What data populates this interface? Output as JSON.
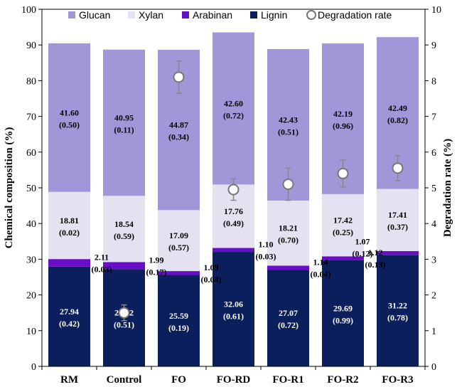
{
  "chart_data": {
    "type": "bar",
    "stacked": true,
    "categories": [
      "RM",
      "Control",
      "FO",
      "FO-RD",
      "FO-R1",
      "FO-R2",
      "FO-R3"
    ],
    "series": [
      {
        "name": "Lignin",
        "color": "#0b1f5c",
        "label_color": "#ffffff",
        "values": [
          27.94,
          27.22,
          25.59,
          32.06,
          27.07,
          29.69,
          31.22
        ],
        "errors": [
          0.42,
          0.51,
          0.19,
          0.61,
          0.72,
          0.99,
          0.78
        ],
        "value_labels": [
          "27.94",
          "27.22",
          "25.59",
          "32.06",
          "27.07",
          "29.69",
          "31.22"
        ],
        "error_labels": [
          "(0.42)",
          "(0.51)",
          "(0.19)",
          "(0.61)",
          "(0.72)",
          "(0.99)",
          "(0.78)"
        ]
      },
      {
        "name": "Arabinan",
        "color": "#6a0dc8",
        "label_color": "#000000",
        "values": [
          2.11,
          1.99,
          1.09,
          1.1,
          1.14,
          1.12,
          1.07
        ],
        "errors": [
          0.03,
          0.17,
          0.04,
          0.03,
          0.04,
          0.13,
          0.12
        ],
        "value_labels": [
          "2.11",
          "1.99",
          "1.09",
          "1.10",
          "1.14",
          "1.12",
          "1.07"
        ],
        "error_labels": [
          "(0.03)",
          "(0.17)",
          "(0.04)",
          "(0.03)",
          "(0.04)",
          "(0.13)",
          "(0.12)"
        ]
      },
      {
        "name": "Xylan",
        "color": "#e4e1f1",
        "label_color": "#000000",
        "values": [
          18.81,
          18.54,
          17.09,
          17.76,
          18.21,
          17.42,
          17.41
        ],
        "errors": [
          0.02,
          0.59,
          0.57,
          0.49,
          0.7,
          0.25,
          0.37
        ],
        "value_labels": [
          "18.81",
          "18.54",
          "17.09",
          "17.76",
          "18.21",
          "17.42",
          "17.41"
        ],
        "error_labels": [
          "(0.02)",
          "(0.59)",
          "(0.57)",
          "(0.49)",
          "(0.70)",
          "(0.25)",
          "(0.37)"
        ]
      },
      {
        "name": "Glucan",
        "color": "#a396d8",
        "label_color": "#000000",
        "values": [
          41.6,
          40.95,
          44.87,
          42.6,
          42.43,
          42.19,
          42.49
        ],
        "errors": [
          0.5,
          0.11,
          0.34,
          0.72,
          0.51,
          0.96,
          0.82
        ],
        "value_labels": [
          "41.60",
          "40.95",
          "44.87",
          "42.60",
          "42.43",
          "42.19",
          "42.49"
        ],
        "error_labels": [
          "(0.50)",
          "(0.11)",
          "(0.34)",
          "(0.72)",
          "(0.51)",
          "(0.96)",
          "(0.82)"
        ]
      }
    ],
    "degradation_rate": {
      "name": "Degradation rate",
      "values": [
        null,
        1.5,
        8.1,
        4.95,
        5.1,
        5.4,
        5.55
      ],
      "errors": [
        null,
        0.22,
        0.45,
        0.3,
        0.45,
        0.38,
        0.35
      ]
    },
    "legend": [
      "Glucan",
      "Xylan",
      "Arabinan",
      "Lignin",
      "Degradation rate"
    ],
    "ylabel": "Chemical composition  (%)",
    "y2label": "Degradation rate (%)",
    "ylim": [
      0,
      100
    ],
    "y2lim": [
      0,
      10
    ],
    "yticks": [
      "0",
      "10",
      "20",
      "30",
      "40",
      "50",
      "60",
      "70",
      "80",
      "90",
      "100"
    ],
    "y2ticks": [
      "0",
      "1",
      "2",
      "3",
      "4",
      "5",
      "6",
      "7",
      "8",
      "9",
      "10"
    ],
    "arabinan_label_style": "outside-right, leader line on FO-R3",
    "legend_position": "top"
  }
}
